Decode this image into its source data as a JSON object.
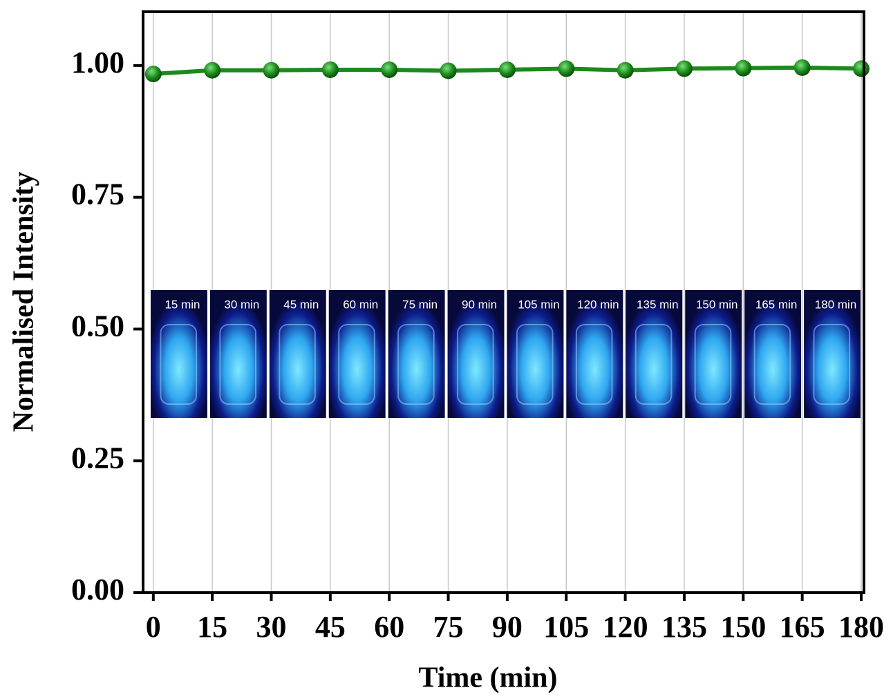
{
  "chart_data": {
    "type": "line",
    "x_label": "Time (min)",
    "y_label": "Normalised Intensity",
    "x": [
      0,
      15,
      30,
      45,
      60,
      75,
      90,
      105,
      120,
      135,
      150,
      165,
      180
    ],
    "series": [
      {
        "color": "#1b8a1b",
        "values": [
          0.984,
          0.991,
          0.991,
          0.992,
          0.992,
          0.99,
          0.992,
          0.994,
          0.991,
          0.994,
          0.995,
          0.996,
          0.994
        ]
      }
    ],
    "xlim": [
      -2.6,
      180.7
    ],
    "ylim": [
      0,
      1.102
    ],
    "xticks": [
      0,
      15,
      30,
      45,
      60,
      75,
      90,
      105,
      120,
      135,
      150,
      165,
      180
    ],
    "yticks": [
      {
        "value": 0,
        "label": "0.00"
      },
      {
        "value": 0.25,
        "label": "0.25"
      },
      {
        "value": 0.5,
        "label": "0.50"
      },
      {
        "value": 0.75,
        "label": "0.75"
      },
      {
        "value": 1,
        "label": "1.00"
      }
    ],
    "grid": true,
    "photo_labels": [
      "15 min",
      "30 min",
      "45 min",
      "60 min",
      "75 min",
      "90 min",
      "105 min",
      "120 min",
      "135 min",
      "150 min",
      "165 min",
      "180 min"
    ]
  }
}
